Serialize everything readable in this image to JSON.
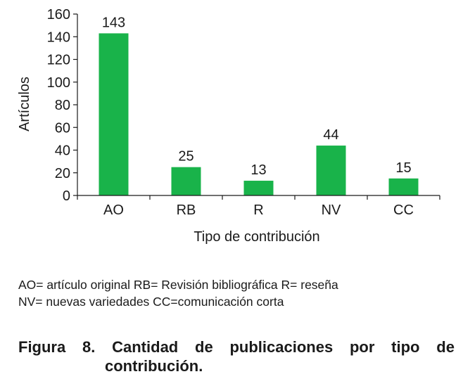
{
  "chart_data": {
    "type": "bar",
    "categories": [
      "AO",
      "RB",
      "R",
      "NV",
      "CC"
    ],
    "values": [
      143,
      25,
      13,
      44,
      15
    ],
    "data_labels": [
      "143",
      "25",
      "13",
      "44",
      "15"
    ],
    "xlabel": "Tipo de contribución",
    "ylabel": "Artículos",
    "ylim": [
      0,
      160
    ],
    "yticks": [
      0,
      20,
      40,
      60,
      80,
      100,
      120,
      140,
      160
    ],
    "bar_color": "#19b34a",
    "grid": false
  },
  "legend": {
    "line1": "AO= artículo original RB= Revisión bibliográfica R= reseña",
    "line2": "NV= nuevas variedades CC=comunicación corta"
  },
  "caption": {
    "words_line1": [
      "Figura",
      "8.",
      "Cantidad",
      "de",
      "publicaciones",
      "por",
      "tipo",
      "de"
    ],
    "line2": "contribución."
  }
}
